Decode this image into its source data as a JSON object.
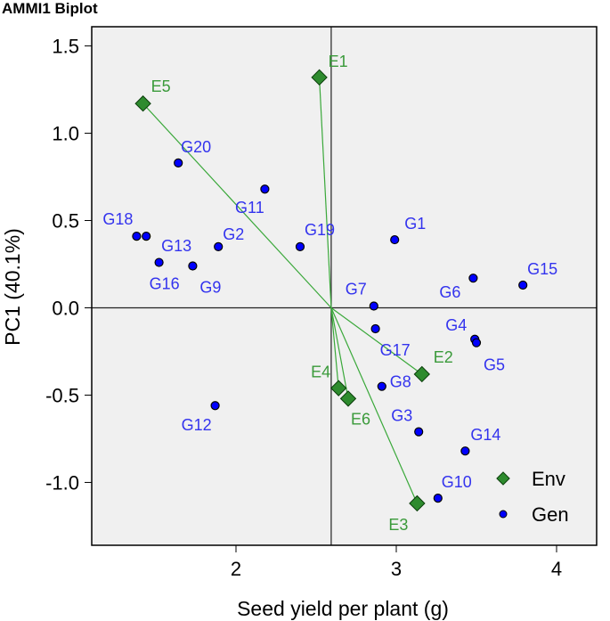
{
  "chart_data": {
    "type": "scatter",
    "title": "AMMI1 Biplot",
    "xlabel": "Seed yield per plant (g)",
    "ylabel": "PC1 (40.1%)",
    "xlim": [
      1.1,
      4.25
    ],
    "ylim": [
      -1.36,
      1.61
    ],
    "xticks": [
      2,
      3,
      4
    ],
    "yticks": [
      -1.0,
      -0.5,
      0.0,
      0.5,
      1.0,
      1.5
    ],
    "ytick_labels": [
      "-1.0",
      "-0.5",
      "0.0",
      "0.5",
      "1.0",
      "1.5"
    ],
    "reference_lines": {
      "x": 2.594,
      "y": 0
    },
    "legend": {
      "position": "bottom-right",
      "entries": [
        "Env",
        "Gen"
      ]
    },
    "colors": {
      "env": "#2e8b2e",
      "env_label": "#3a9a3a",
      "gen": "#0000ff",
      "gen_label": "#3333ee",
      "vector": "#3aa83a",
      "panel": "#f0f0f0"
    },
    "series": [
      {
        "name": "Env",
        "marker": "diamond",
        "points": [
          {
            "label": "E1",
            "x": 2.52,
            "y": 1.32
          },
          {
            "label": "E2",
            "x": 3.16,
            "y": -0.38
          },
          {
            "label": "E3",
            "x": 3.13,
            "y": -1.12
          },
          {
            "label": "E4",
            "x": 2.64,
            "y": -0.46
          },
          {
            "label": "E5",
            "x": 1.42,
            "y": 1.17
          },
          {
            "label": "E6",
            "x": 2.7,
            "y": -0.52
          }
        ]
      },
      {
        "name": "Gen",
        "marker": "circle",
        "points": [
          {
            "label": "G1",
            "x": 2.99,
            "y": 0.39
          },
          {
            "label": "G2",
            "x": 1.89,
            "y": 0.35
          },
          {
            "label": "G3",
            "x": 3.14,
            "y": -0.71
          },
          {
            "label": "G4",
            "x": 3.49,
            "y": -0.18
          },
          {
            "label": "G5",
            "x": 3.5,
            "y": -0.2
          },
          {
            "label": "G6",
            "x": 3.48,
            "y": 0.17
          },
          {
            "label": "G7",
            "x": 2.86,
            "y": 0.01
          },
          {
            "label": "G8",
            "x": 2.91,
            "y": -0.45
          },
          {
            "label": "G9",
            "x": 1.73,
            "y": 0.24
          },
          {
            "label": "G10",
            "x": 3.26,
            "y": -1.09
          },
          {
            "label": "G11",
            "x": 2.18,
            "y": 0.68
          },
          {
            "label": "G12",
            "x": 1.87,
            "y": -0.56
          },
          {
            "label": "G13",
            "x": 1.44,
            "y": 0.41
          },
          {
            "label": "G14",
            "x": 3.43,
            "y": -0.82
          },
          {
            "label": "G15",
            "x": 3.79,
            "y": 0.13
          },
          {
            "label": "G16",
            "x": 1.52,
            "y": 0.26
          },
          {
            "label": "G17",
            "x": 2.87,
            "y": -0.12
          },
          {
            "label": "G18",
            "x": 1.38,
            "y": 0.41
          },
          {
            "label": "G19",
            "x": 2.4,
            "y": 0.35
          },
          {
            "label": "G20",
            "x": 1.64,
            "y": 0.83
          }
        ]
      }
    ]
  }
}
